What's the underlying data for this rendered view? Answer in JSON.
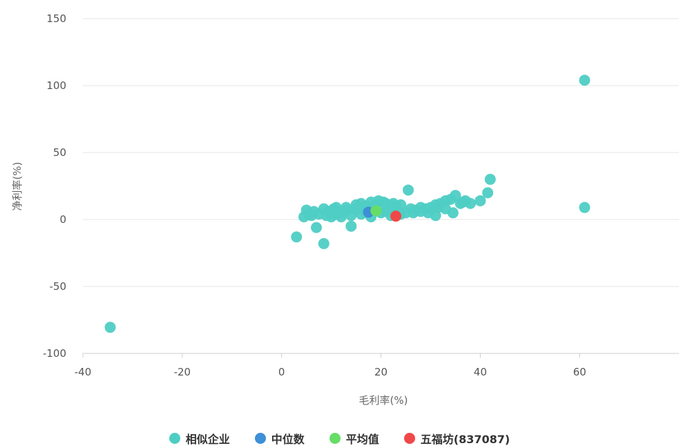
{
  "chart_data": {
    "type": "scatter",
    "xlabel": "毛利率(%)",
    "ylabel": "净利率(%)",
    "xlim": [
      -40,
      80
    ],
    "ylim": [
      -100,
      150
    ],
    "x_ticks": [
      "-40",
      "-20",
      "0",
      "20",
      "40",
      "60"
    ],
    "y_ticks": [
      "150",
      "100",
      "50",
      "0",
      "-50",
      "-100"
    ],
    "legend_position": "bottom",
    "grid": true,
    "series": [
      {
        "name": "相似企业",
        "color": "#4ECDC4",
        "points": [
          [
            -34.5,
            -80.5
          ],
          [
            61,
            104
          ],
          [
            61,
            9
          ],
          [
            42,
            30
          ],
          [
            41.5,
            20
          ],
          [
            40,
            14
          ],
          [
            36,
            12
          ],
          [
            37,
            14
          ],
          [
            35,
            18
          ],
          [
            34.5,
            5
          ],
          [
            33,
            14
          ],
          [
            31,
            3
          ],
          [
            31,
            11
          ],
          [
            29,
            8
          ],
          [
            28,
            9
          ],
          [
            26.5,
            5
          ],
          [
            25.5,
            22
          ],
          [
            25,
            5
          ],
          [
            24,
            11
          ],
          [
            22,
            8
          ],
          [
            21,
            12
          ],
          [
            19.5,
            14
          ],
          [
            18,
            13
          ],
          [
            17,
            10
          ],
          [
            16,
            12
          ],
          [
            15,
            8
          ],
          [
            14,
            -5
          ],
          [
            13,
            7
          ],
          [
            12,
            5
          ],
          [
            11,
            9
          ],
          [
            10,
            6
          ],
          [
            9,
            3
          ],
          [
            8.5,
            8
          ],
          [
            8.5,
            -18
          ],
          [
            7,
            -6
          ],
          [
            6,
            3
          ],
          [
            5,
            7
          ],
          [
            4.5,
            2
          ],
          [
            3,
            -13
          ],
          [
            10,
            2
          ],
          [
            12,
            2
          ],
          [
            14,
            3
          ],
          [
            16,
            4
          ],
          [
            18,
            2
          ],
          [
            20,
            5
          ],
          [
            22,
            3
          ],
          [
            24,
            4
          ],
          [
            26,
            8
          ],
          [
            28,
            6
          ],
          [
            30,
            9
          ],
          [
            32,
            12
          ],
          [
            33,
            8
          ],
          [
            38,
            12
          ],
          [
            23,
            10
          ],
          [
            19,
            11
          ],
          [
            13,
            9
          ],
          [
            11,
            4
          ],
          [
            9.5,
            6
          ],
          [
            7.5,
            4
          ],
          [
            5.5,
            4
          ],
          [
            15,
            11
          ],
          [
            17,
            5
          ],
          [
            21,
            6
          ],
          [
            27,
            7
          ],
          [
            29.5,
            5
          ],
          [
            31.5,
            9
          ],
          [
            34,
            15
          ],
          [
            36.5,
            13
          ],
          [
            6.5,
            6
          ],
          [
            20.5,
            13
          ],
          [
            22.5,
            12
          ],
          [
            18.5,
            7
          ],
          [
            16.5,
            9
          ],
          [
            12.5,
            6
          ],
          [
            10.5,
            8
          ]
        ]
      },
      {
        "name": "中位数",
        "color": "#3D8FD8",
        "points": [
          [
            17.5,
            5.5
          ]
        ]
      },
      {
        "name": "平均值",
        "color": "#66DD66",
        "points": [
          [
            19,
            6.5
          ]
        ]
      },
      {
        "name": "五福坊(837087)",
        "color": "#F04848",
        "points": [
          [
            23,
            2.5
          ]
        ]
      }
    ]
  }
}
